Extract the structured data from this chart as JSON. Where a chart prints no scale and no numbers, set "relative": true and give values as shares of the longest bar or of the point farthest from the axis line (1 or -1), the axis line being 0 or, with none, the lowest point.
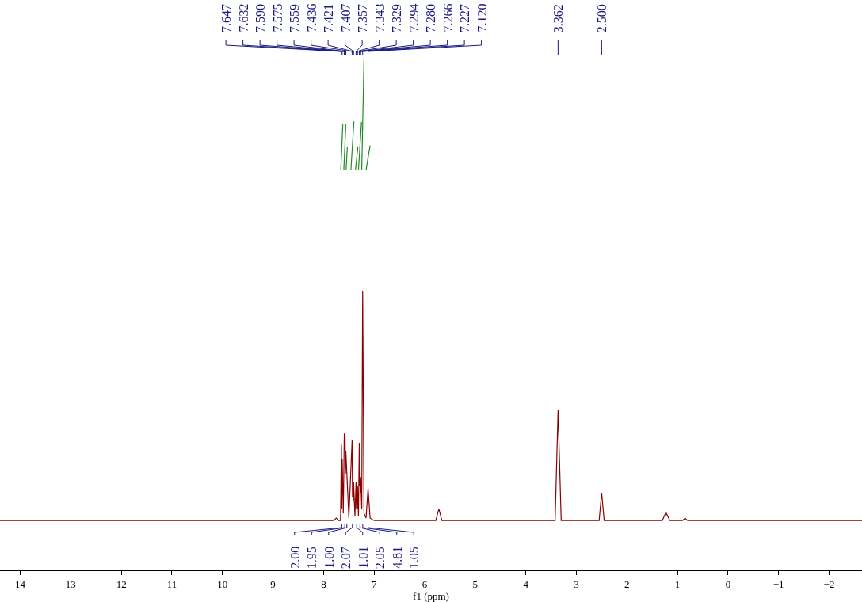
{
  "chart_data": {
    "type": "line",
    "relative": true,
    "xlabel": "f1 (ppm)",
    "xlim": [
      14.4,
      -2.65
    ],
    "xticks": [
      14,
      13,
      12,
      11,
      10,
      9,
      8,
      7,
      6,
      5,
      4,
      3,
      2,
      1,
      0,
      {
        "value": -1,
        "label": "−1"
      },
      {
        "value": -2,
        "label": "−2"
      }
    ],
    "marker": "none",
    "line_style": "solid",
    "series": [
      {
        "color": "#8b0000",
        "x": [
          14.4,
          7.8,
          7.75,
          7.7,
          7.665,
          7.647,
          7.64,
          7.632,
          7.61,
          7.59,
          7.582,
          7.575,
          7.567,
          7.559,
          7.5,
          7.436,
          7.428,
          7.421,
          7.414,
          7.407,
          7.38,
          7.357,
          7.35,
          7.343,
          7.336,
          7.329,
          7.31,
          7.294,
          7.287,
          7.28,
          7.273,
          7.266,
          7.245,
          7.227,
          7.2,
          7.16,
          7.12,
          7.08,
          7.0,
          5.78,
          5.72,
          5.66,
          3.42,
          3.362,
          3.3,
          2.55,
          2.5,
          2.45,
          1.3,
          1.23,
          1.15,
          0.9,
          0.85,
          0.8,
          -2.65
        ],
        "values": [
          0.097,
          0.097,
          0.102,
          0.097,
          0.097,
          0.245,
          0.12,
          0.218,
          0.111,
          0.267,
          0.232,
          0.263,
          0.187,
          0.232,
          0.102,
          0.254,
          0.143,
          0.187,
          0.134,
          0.173,
          0.106,
          0.173,
          0.12,
          0.143,
          0.12,
          0.164,
          0.106,
          0.249,
          0.164,
          0.205,
          0.151,
          0.182,
          0.12,
          0.544,
          0.111,
          0.102,
          0.16,
          0.102,
          0.097,
          0.097,
          0.12,
          0.097,
          0.097,
          0.312,
          0.097,
          0.097,
          0.151,
          0.097,
          0.097,
          0.113,
          0.097,
          0.097,
          0.102,
          0.097,
          0.097
        ]
      },
      {
        "color": "#228b22",
        "x": [
          7.66,
          7.62,
          null,
          7.6,
          7.56,
          null,
          7.555,
          7.53,
          null,
          7.46,
          7.4,
          null,
          7.37,
          7.32,
          null,
          7.31,
          7.25,
          null,
          7.245,
          7.2,
          null,
          7.16,
          7.08
        ],
        "values": [
          0.781,
          0.87,
          null,
          0.781,
          0.87,
          null,
          0.781,
          0.826,
          null,
          0.781,
          0.876,
          null,
          0.781,
          0.827,
          null,
          0.781,
          0.875,
          null,
          0.781,
          1.0,
          null,
          0.781,
          0.829
        ]
      }
    ],
    "annotations": [
      {
        "text": "7.647",
        "x": 7.647
      },
      {
        "text": "7.632",
        "x": 7.632
      },
      {
        "text": "7.590",
        "x": 7.59
      },
      {
        "text": "7.575",
        "x": 7.575
      },
      {
        "text": "7.559",
        "x": 7.559
      },
      {
        "text": "7.436",
        "x": 7.436
      },
      {
        "text": "7.421",
        "x": 7.421
      },
      {
        "text": "7.407",
        "x": 7.407
      },
      {
        "text": "7.357",
        "x": 7.357
      },
      {
        "text": "7.343",
        "x": 7.343
      },
      {
        "text": "7.329",
        "x": 7.329
      },
      {
        "text": "7.294",
        "x": 7.294
      },
      {
        "text": "7.280",
        "x": 7.28
      },
      {
        "text": "7.266",
        "x": 7.266
      },
      {
        "text": "7.227",
        "x": 7.227
      },
      {
        "text": "7.120",
        "x": 7.12
      },
      {
        "text": "3.362",
        "x": 3.362
      },
      {
        "text": "2.500",
        "x": 2.5
      },
      {
        "text": "2.00",
        "x": 7.64
      },
      {
        "text": "1.95",
        "x": 7.58
      },
      {
        "text": "1.00",
        "x": 7.54
      },
      {
        "text": "2.07",
        "x": 7.43
      },
      {
        "text": "1.01",
        "x": 7.345
      },
      {
        "text": "2.05",
        "x": 7.28
      },
      {
        "text": "4.81",
        "x": 7.225
      },
      {
        "text": "1.05",
        "x": 7.12
      }
    ]
  }
}
